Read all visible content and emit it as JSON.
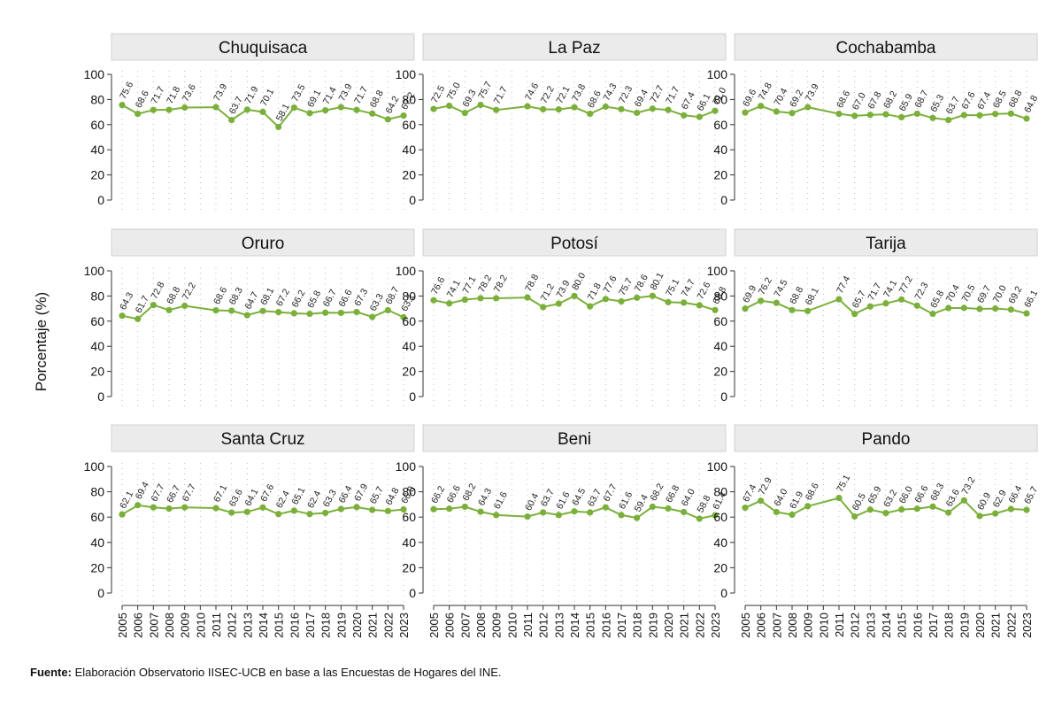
{
  "figure": {
    "ylabel": "Porcentaje (%)",
    "source_label": "Fuente:",
    "source_text": "Elaboración Observatorio IISEC-UCB en base a las Encuestas de Hogares del INE."
  },
  "colors": {
    "line": "#7ab03a",
    "panel_header_bg": "#ebebeb",
    "panel_header_border": "#d0d0d0",
    "grid": "#bbbbbb"
  },
  "chart_data": {
    "type": "line",
    "ylim": [
      0,
      100
    ],
    "yticks": [
      0,
      20,
      40,
      60,
      80,
      100
    ],
    "grid": true,
    "years": [
      2005,
      2006,
      2007,
      2008,
      2009,
      2010,
      2011,
      2012,
      2013,
      2014,
      2015,
      2016,
      2017,
      2018,
      2019,
      2020,
      2021,
      2022,
      2023
    ],
    "panels": [
      {
        "name": "Chuquisaca",
        "x": [
          2005,
          2006,
          2007,
          2008,
          2009,
          2011,
          2012,
          2013,
          2014,
          2015,
          2016,
          2017,
          2018,
          2019,
          2020,
          2021,
          2022,
          2023
        ],
        "y": [
          75.6,
          68.6,
          71.7,
          71.8,
          73.6,
          73.9,
          63.7,
          71.9,
          70.1,
          58.1,
          73.5,
          69.1,
          71.4,
          73.9,
          71.7,
          68.8,
          64.2,
          67.2
        ]
      },
      {
        "name": "La Paz",
        "x": [
          2005,
          2006,
          2007,
          2008,
          2009,
          2011,
          2012,
          2013,
          2014,
          2015,
          2016,
          2017,
          2018,
          2019,
          2020,
          2021,
          2022,
          2023
        ],
        "y": [
          72.5,
          75.0,
          69.3,
          75.7,
          71.7,
          74.6,
          72.2,
          72.1,
          73.8,
          68.6,
          74.3,
          72.3,
          69.4,
          72.7,
          71.7,
          67.4,
          66.1,
          71.0
        ]
      },
      {
        "name": "Cochabamba",
        "x": [
          2005,
          2006,
          2007,
          2008,
          2009,
          2011,
          2012,
          2013,
          2014,
          2015,
          2016,
          2017,
          2018,
          2019,
          2020,
          2021,
          2022,
          2023
        ],
        "y": [
          69.6,
          74.8,
          70.4,
          69.2,
          73.9,
          68.6,
          67.0,
          67.8,
          68.2,
          65.9,
          68.7,
          65.3,
          63.7,
          67.6,
          67.4,
          68.5,
          68.8,
          64.8
        ]
      },
      {
        "name": "Oruro",
        "x": [
          2005,
          2006,
          2007,
          2008,
          2009,
          2011,
          2012,
          2013,
          2014,
          2015,
          2016,
          2017,
          2018,
          2019,
          2020,
          2021,
          2022,
          2023
        ],
        "y": [
          64.3,
          61.7,
          72.8,
          68.8,
          72.2,
          68.6,
          68.3,
          64.7,
          68.1,
          67.2,
          66.2,
          65.8,
          66.7,
          66.6,
          67.3,
          63.3,
          68.7,
          63.1
        ]
      },
      {
        "name": "Potosí",
        "x": [
          2005,
          2006,
          2007,
          2008,
          2009,
          2011,
          2012,
          2013,
          2014,
          2015,
          2016,
          2017,
          2018,
          2019,
          2020,
          2021,
          2022,
          2023
        ],
        "y": [
          76.6,
          74.1,
          77.1,
          78.2,
          78.2,
          78.8,
          71.2,
          73.9,
          80.0,
          71.8,
          77.6,
          75.7,
          78.6,
          80.1,
          75.1,
          74.7,
          72.6,
          68.8
        ]
      },
      {
        "name": "Tarija",
        "x": [
          2005,
          2006,
          2007,
          2008,
          2009,
          2011,
          2012,
          2013,
          2014,
          2015,
          2016,
          2017,
          2018,
          2019,
          2020,
          2021,
          2022,
          2023
        ],
        "y": [
          69.9,
          76.2,
          74.5,
          68.8,
          68.1,
          77.4,
          65.7,
          71.7,
          74.1,
          77.2,
          72.3,
          65.8,
          70.4,
          70.5,
          69.7,
          70.0,
          69.2,
          66.1
        ]
      },
      {
        "name": "Santa Cruz",
        "x": [
          2005,
          2006,
          2007,
          2008,
          2009,
          2011,
          2012,
          2013,
          2014,
          2015,
          2016,
          2017,
          2018,
          2019,
          2020,
          2021,
          2022,
          2023
        ],
        "y": [
          62.1,
          69.4,
          67.7,
          66.7,
          67.7,
          67.1,
          63.6,
          64.1,
          67.6,
          62.4,
          65.1,
          62.4,
          63.3,
          66.4,
          67.9,
          65.7,
          64.8,
          66.0
        ]
      },
      {
        "name": "Beni",
        "x": [
          2005,
          2006,
          2007,
          2008,
          2009,
          2011,
          2012,
          2013,
          2014,
          2015,
          2016,
          2017,
          2018,
          2019,
          2020,
          2021,
          2022,
          2023
        ],
        "y": [
          66.2,
          66.6,
          68.2,
          64.3,
          61.6,
          60.4,
          63.7,
          61.6,
          64.5,
          63.7,
          67.7,
          61.6,
          59.4,
          68.2,
          66.8,
          64.0,
          58.8,
          61.4
        ]
      },
      {
        "name": "Pando",
        "x": [
          2005,
          2006,
          2007,
          2008,
          2009,
          2011,
          2012,
          2013,
          2014,
          2015,
          2016,
          2017,
          2018,
          2019,
          2020,
          2021,
          2022,
          2023
        ],
        "y": [
          67.4,
          72.9,
          64.0,
          61.9,
          68.6,
          75.1,
          60.5,
          65.9,
          63.2,
          66.0,
          66.6,
          68.3,
          63.6,
          73.2,
          60.9,
          62.9,
          66.4,
          65.7
        ]
      }
    ]
  }
}
